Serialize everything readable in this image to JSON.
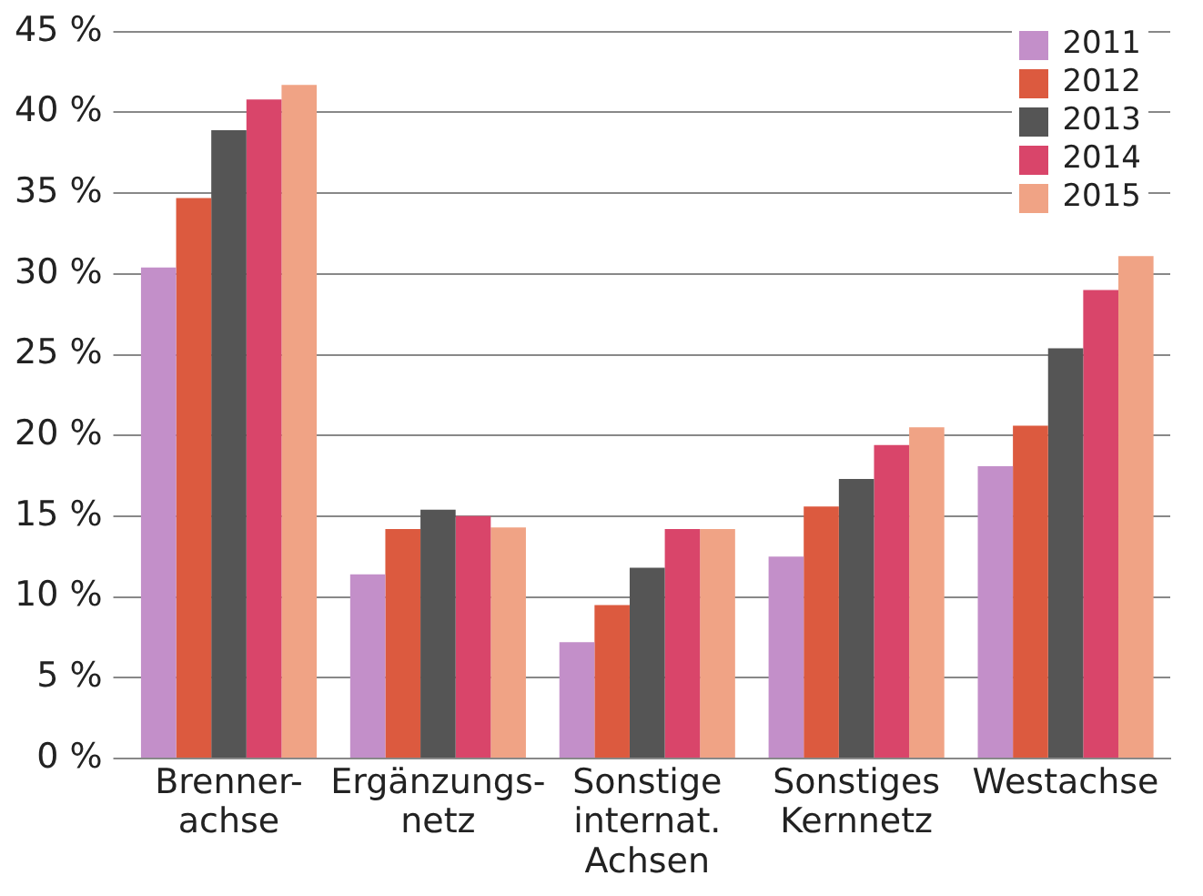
{
  "chart_data": {
    "type": "bar",
    "categories": [
      "Brenner-\nachse",
      "Ergänzungs-\nnetz",
      "Sonstige\ninternat.\nAchsen",
      "Sonstiges\nKernnetz",
      "Westachse"
    ],
    "series": [
      {
        "name": "2011",
        "color": "#c38fc9",
        "values": [
          30.4,
          11.4,
          7.2,
          12.5,
          18.1
        ]
      },
      {
        "name": "2012",
        "color": "#dc5a3f",
        "values": [
          34.7,
          14.2,
          9.5,
          15.6,
          20.6
        ]
      },
      {
        "name": "2013",
        "color": "#555555",
        "values": [
          38.9,
          15.4,
          11.8,
          17.3,
          25.4
        ]
      },
      {
        "name": "2014",
        "color": "#d9456a",
        "values": [
          40.8,
          15.0,
          14.2,
          19.4,
          29.0
        ]
      },
      {
        "name": "2015",
        "color": "#f0a385",
        "values": [
          41.7,
          14.3,
          14.2,
          20.5,
          31.1
        ]
      }
    ],
    "ylim": [
      0,
      45
    ],
    "yticks": [
      {
        "value": 0,
        "label": "0 %"
      },
      {
        "value": 5,
        "label": "5 %"
      },
      {
        "value": 10,
        "label": "10 %"
      },
      {
        "value": 15,
        "label": "15 %"
      },
      {
        "value": 20,
        "label": "20 %"
      },
      {
        "value": 25,
        "label": "25 %"
      },
      {
        "value": 30,
        "label": "30 %"
      },
      {
        "value": 35,
        "label": "35 %"
      },
      {
        "value": 40,
        "label": "40 %"
      },
      {
        "value": 45,
        "label": "45 %"
      }
    ],
    "grid": "y",
    "legend": "top right"
  }
}
